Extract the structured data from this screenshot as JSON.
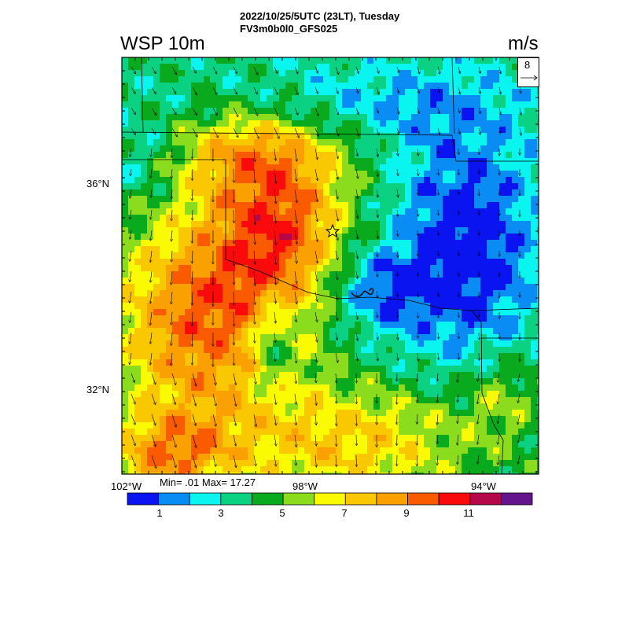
{
  "header": {
    "line1": "2022/10/25/5UTC (23LT), Tuesday",
    "line2": "FV3m0b0l0_GFS025"
  },
  "variable_label": "WSP 10m",
  "units_label": "m/s",
  "reference_vector": {
    "label": "8"
  },
  "stats": "Min= .01 Max= 17.27",
  "lat_labels": [
    "36°N",
    "32°N"
  ],
  "lon_labels": [
    "102°W",
    "98°W",
    "94°W"
  ],
  "colorbar": {
    "colors": [
      "#0a14f0",
      "#0a8cf5",
      "#0af5f0",
      "#0ad282",
      "#0aaa1e",
      "#8cdc1e",
      "#fafa00",
      "#fac800",
      "#faa000",
      "#fa5a00",
      "#fa0a0a",
      "#b4084b",
      "#64148c"
    ],
    "labels": [
      "1",
      "3",
      "5",
      "7",
      "9",
      "11"
    ]
  },
  "map": {
    "marker": "star-icon"
  }
}
